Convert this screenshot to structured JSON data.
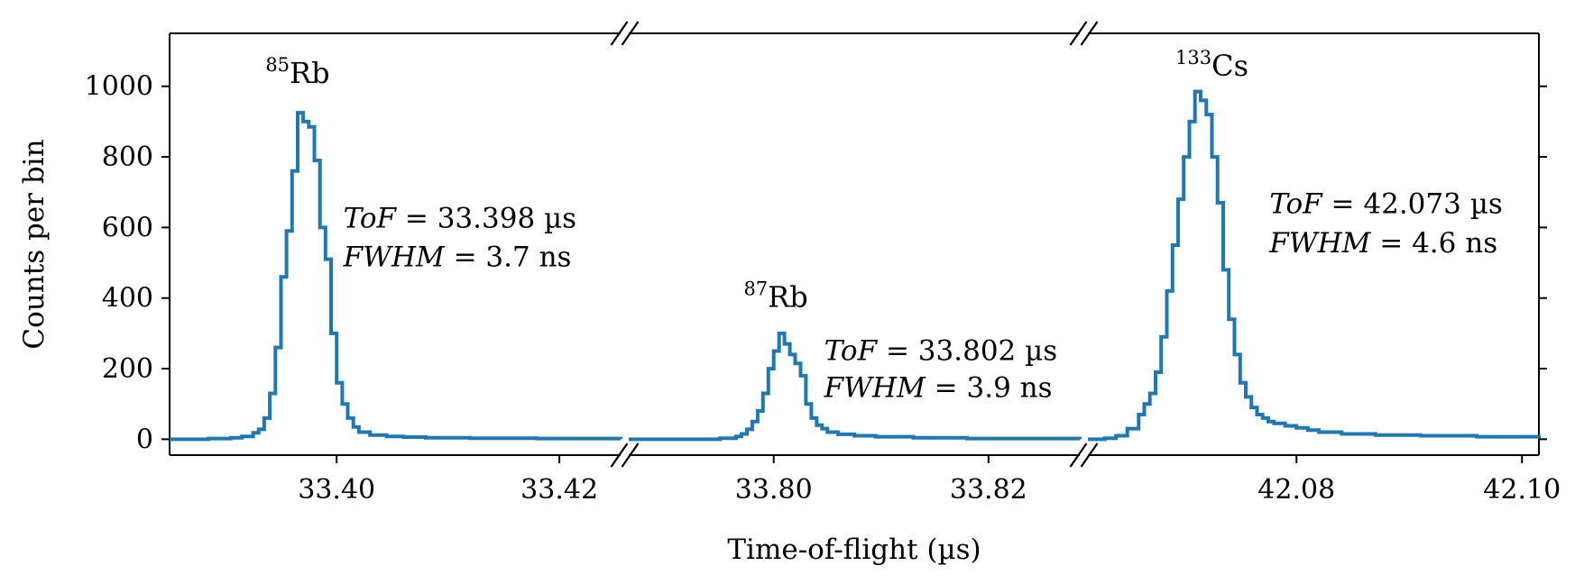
{
  "chart_data": {
    "type": "line",
    "xlabel": "Time-of-flight (µs)",
    "ylabel": "Counts per bin",
    "ylim": [
      -45,
      1150
    ],
    "yticks": [
      0,
      200,
      400,
      600,
      800,
      1000
    ],
    "broken_x_axis": true,
    "grid": false,
    "color": "#1f77b4",
    "panels": [
      {
        "xlim": [
          33.385,
          33.4255
        ],
        "xticks": [
          "33.40",
          "33.42"
        ],
        "xtick_values": [
          33.4,
          33.42
        ],
        "peak_label": {
          "mass": "85",
          "element": "Rb",
          "x": 33.3965,
          "y": 1010
        },
        "annotation": {
          "tof": "ToF = 33.398 µs",
          "fwhm": "FWHM = 3.7 ns",
          "x": 33.4006,
          "y1": 600,
          "y2": 490
        },
        "x": [
          33.385,
          33.3885,
          33.3905,
          33.3915,
          33.3925,
          33.393,
          33.3935,
          33.394,
          33.3945,
          33.395,
          33.3955,
          33.396,
          33.3965,
          33.397,
          33.3975,
          33.398,
          33.3985,
          33.399,
          33.3995,
          33.4,
          33.4005,
          33.401,
          33.4015,
          33.402,
          33.403,
          33.4045,
          33.406,
          33.408,
          33.412,
          33.418,
          33.4255
        ],
        "y": [
          0,
          2,
          4,
          8,
          18,
          28,
          60,
          130,
          260,
          460,
          590,
          760,
          925,
          900,
          885,
          790,
          600,
          510,
          300,
          160,
          100,
          60,
          35,
          20,
          12,
          8,
          6,
          4,
          3,
          2,
          0
        ]
      },
      {
        "xlim": [
          33.7865,
          33.8285
        ],
        "xticks": [
          "33.80",
          "33.82"
        ],
        "xtick_values": [
          33.8,
          33.82
        ],
        "peak_label": {
          "mass": "87",
          "element": "Rb",
          "x": 33.8002,
          "y": 375
        },
        "annotation": {
          "tof": "ToF = 33.802 µs",
          "fwhm": "FWHM = 3.9 ns",
          "x": 33.8047,
          "y1": 225,
          "y2": 120
        },
        "x": [
          33.7865,
          33.795,
          33.7965,
          33.797,
          33.7975,
          33.798,
          33.7985,
          33.799,
          33.7995,
          33.8,
          33.8005,
          33.801,
          33.8015,
          33.802,
          33.8025,
          33.803,
          33.8035,
          33.804,
          33.8045,
          33.805,
          33.806,
          33.8075,
          33.8095,
          33.813,
          33.818,
          33.8285
        ],
        "y": [
          0,
          3,
          8,
          15,
          28,
          50,
          80,
          130,
          200,
          250,
          300,
          270,
          240,
          215,
          180,
          100,
          60,
          40,
          30,
          20,
          14,
          10,
          7,
          4,
          2,
          0
        ]
      },
      {
        "xlim": [
          42.0615,
          42.1015
        ],
        "xticks": [
          "42.08",
          "42.10"
        ],
        "xtick_values": [
          42.08,
          42.1
        ],
        "peak_label": {
          "mass": "133",
          "element": "Cs",
          "x": 42.0725,
          "y": 1030
        },
        "annotation": {
          "tof": "ToF = 42.073 µs",
          "fwhm": "FWHM = 4.6 ns",
          "x": 42.0776,
          "y1": 640,
          "y2": 530
        },
        "x": [
          42.0615,
          42.063,
          42.064,
          42.065,
          42.066,
          42.0665,
          42.067,
          42.0675,
          42.068,
          42.0685,
          42.069,
          42.0695,
          42.07,
          42.0705,
          42.071,
          42.0715,
          42.072,
          42.0725,
          42.073,
          42.0735,
          42.074,
          42.0745,
          42.075,
          42.0755,
          42.076,
          42.0765,
          42.077,
          42.0775,
          42.078,
          42.079,
          42.08,
          42.081,
          42.082,
          42.084,
          42.087,
          42.091,
          42.096,
          42.1015
        ],
        "y": [
          0,
          3,
          10,
          30,
          70,
          100,
          130,
          190,
          290,
          420,
          550,
          680,
          800,
          900,
          985,
          960,
          920,
          800,
          670,
          480,
          340,
          240,
          160,
          120,
          90,
          70,
          60,
          50,
          45,
          38,
          32,
          26,
          20,
          15,
          12,
          10,
          7,
          3
        ]
      }
    ]
  }
}
